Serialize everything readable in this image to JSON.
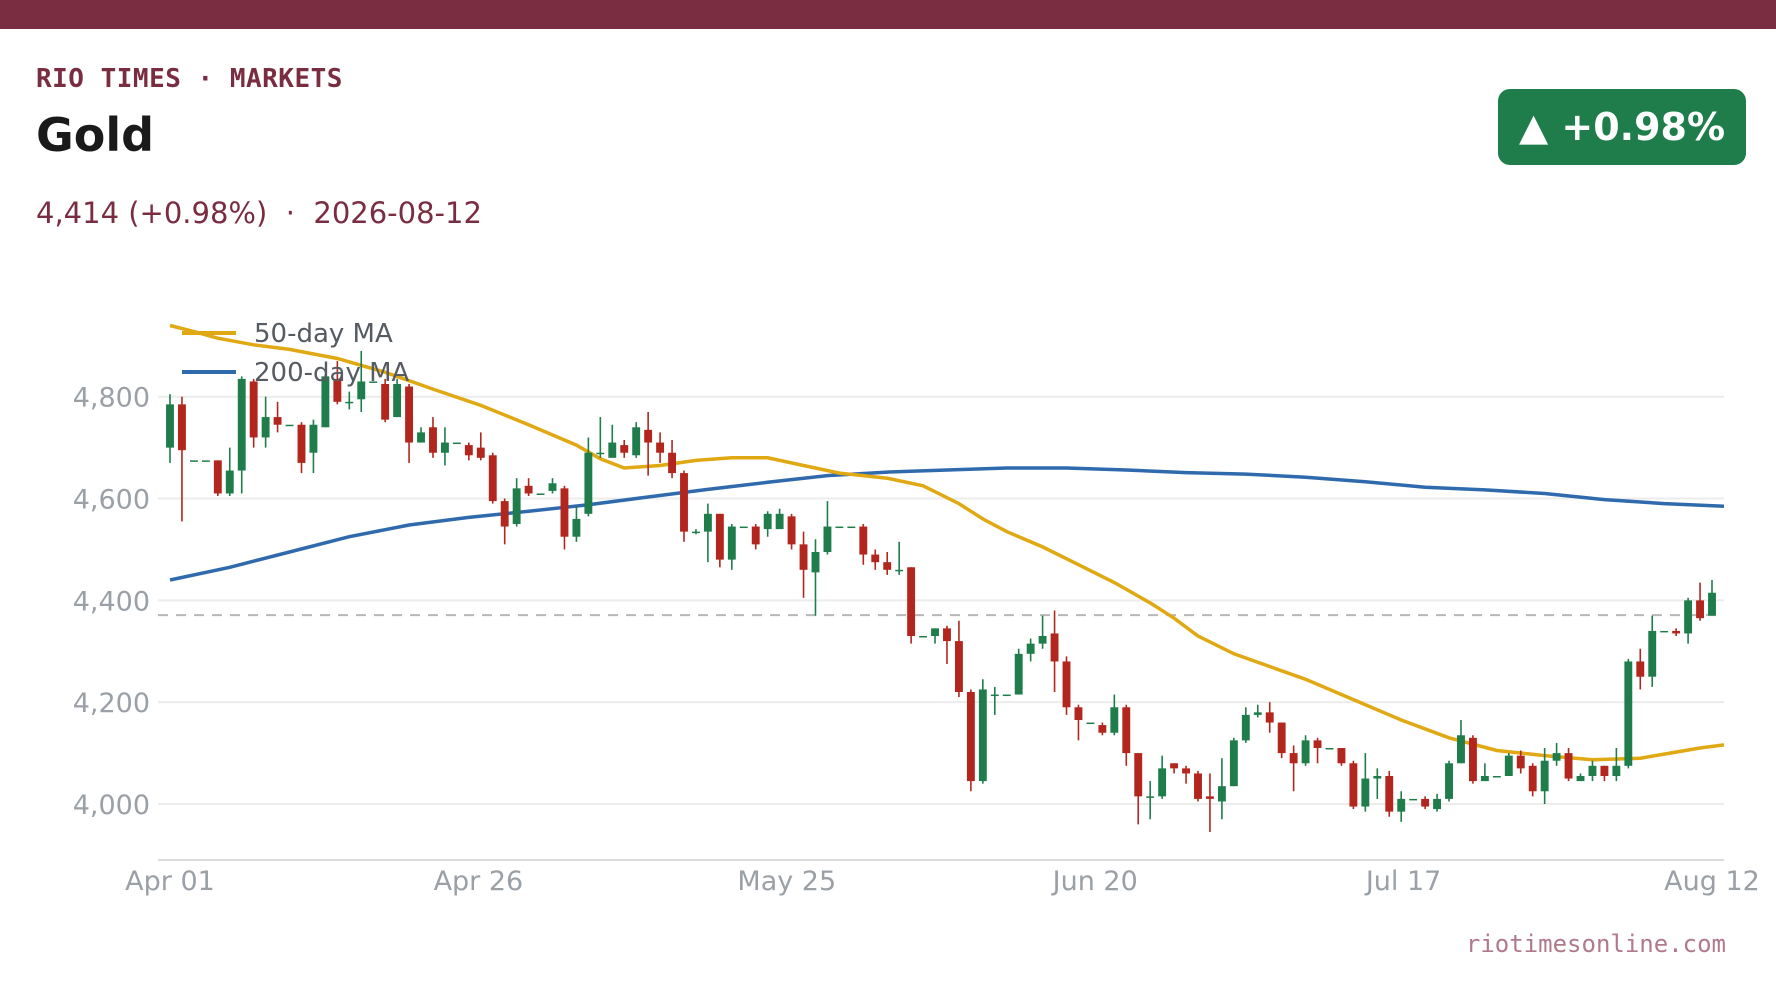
{
  "header": {
    "brand": "RIO TIMES · MARKETS",
    "title": "Gold",
    "subtitle": "4,414 (+0.98%)  ·  2026-08-12",
    "badge": "▲ +0.98%",
    "source": "riotimesonline.com"
  },
  "colors": {
    "brand": "#7a2c40",
    "up": "#1e7d4b",
    "down": "#b3261e",
    "ma50": "#e0a812",
    "ma200": "#2f6aad",
    "reference_line": "#b8b8b8"
  },
  "chart_data": {
    "type": "candlestick",
    "x_ticks": [
      "Apr 01",
      "Apr 26",
      "May 25",
      "Jun 20",
      "Jul 17",
      "Aug 12"
    ],
    "y_ticks": [
      4000,
      4200,
      4400,
      4600,
      4800
    ],
    "y_tick_labels": [
      "4,000",
      "4,200",
      "4,400",
      "4,600",
      "4,800"
    ],
    "ylim": [
      3890,
      4990
    ],
    "legend": [
      {
        "name": "50-day MA",
        "color": "#e0a812"
      },
      {
        "name": "200-day MA",
        "color": "#2f6aad"
      }
    ],
    "legend_position": "top-left",
    "reference_line": 4371,
    "candles": [
      [
        4700,
        4785,
        4805,
        4670
      ],
      [
        4785,
        4695,
        4800,
        4555
      ],
      [
        4675,
        4675,
        4675,
        4675
      ],
      [
        4675,
        4675,
        4675,
        4675
      ],
      [
        4675,
        4610,
        4675,
        4605
      ],
      [
        4610,
        4655,
        4700,
        4605
      ],
      [
        4655,
        4835,
        4840,
        4610
      ],
      [
        4830,
        4720,
        4835,
        4700
      ],
      [
        4720,
        4760,
        4800,
        4700
      ],
      [
        4760,
        4745,
        4790,
        4730
      ],
      [
        4745,
        4745,
        4745,
        4745
      ],
      [
        4745,
        4670,
        4750,
        4650
      ],
      [
        4690,
        4745,
        4755,
        4650
      ],
      [
        4740,
        4840,
        4845,
        4740
      ],
      [
        4835,
        4790,
        4870,
        4785
      ],
      [
        4790,
        4790,
        4810,
        4775
      ],
      [
        4795,
        4830,
        4890,
        4770
      ],
      [
        4830,
        4830,
        4830,
        4830
      ],
      [
        4825,
        4755,
        4835,
        4750
      ],
      [
        4760,
        4825,
        4835,
        4760
      ],
      [
        4820,
        4710,
        4825,
        4670
      ],
      [
        4710,
        4730,
        4740,
        4710
      ],
      [
        4740,
        4690,
        4760,
        4680
      ],
      [
        4690,
        4710,
        4740,
        4665
      ],
      [
        4710,
        4710,
        4710,
        4710
      ],
      [
        4705,
        4685,
        4710,
        4675
      ],
      [
        4700,
        4680,
        4730,
        4675
      ],
      [
        4685,
        4595,
        4690,
        4590
      ],
      [
        4595,
        4545,
        4600,
        4510
      ],
      [
        4550,
        4620,
        4640,
        4545
      ],
      [
        4625,
        4610,
        4640,
        4605
      ],
      [
        4610,
        4610,
        4610,
        4610
      ],
      [
        4615,
        4630,
        4640,
        4610
      ],
      [
        4620,
        4525,
        4625,
        4500
      ],
      [
        4525,
        4560,
        4585,
        4515
      ],
      [
        4570,
        4690,
        4720,
        4565
      ],
      [
        4690,
        4690,
        4760,
        4680
      ],
      [
        4680,
        4710,
        4745,
        4690
      ],
      [
        4705,
        4690,
        4715,
        4680
      ],
      [
        4685,
        4740,
        4750,
        4680
      ],
      [
        4735,
        4710,
        4770,
        4645
      ],
      [
        4710,
        4690,
        4730,
        4670
      ],
      [
        4690,
        4650,
        4715,
        4640
      ],
      [
        4650,
        4535,
        4655,
        4515
      ],
      [
        4535,
        4535,
        4540,
        4530
      ],
      [
        4535,
        4570,
        4590,
        4475
      ],
      [
        4570,
        4480,
        4570,
        4465
      ],
      [
        4480,
        4545,
        4550,
        4460
      ],
      [
        4545,
        4545,
        4545,
        4545
      ],
      [
        4545,
        4510,
        4550,
        4500
      ],
      [
        4540,
        4570,
        4575,
        4525
      ],
      [
        4540,
        4570,
        4580,
        4540
      ],
      [
        4565,
        4510,
        4570,
        4500
      ],
      [
        4510,
        4460,
        4535,
        4405
      ],
      [
        4455,
        4495,
        4520,
        4370
      ],
      [
        4495,
        4545,
        4595,
        4490
      ],
      [
        4545,
        4545,
        4545,
        4545
      ],
      [
        4545,
        4545,
        4545,
        4545
      ],
      [
        4545,
        4490,
        4550,
        4470
      ],
      [
        4490,
        4475,
        4500,
        4460
      ],
      [
        4475,
        4460,
        4495,
        4450
      ],
      [
        4460,
        4460,
        4515,
        4450
      ],
      [
        4465,
        4330,
        4465,
        4315
      ],
      [
        4330,
        4330,
        4330,
        4330
      ],
      [
        4330,
        4345,
        4345,
        4315
      ],
      [
        4345,
        4320,
        4350,
        4275
      ],
      [
        4320,
        4220,
        4360,
        4210
      ],
      [
        4220,
        4045,
        4225,
        4025
      ],
      [
        4045,
        4225,
        4245,
        4040
      ],
      [
        4215,
        4215,
        4230,
        4175
      ],
      [
        4215,
        4215,
        4215,
        4215
      ],
      [
        4215,
        4295,
        4305,
        4215
      ],
      [
        4295,
        4315,
        4325,
        4280
      ],
      [
        4315,
        4330,
        4370,
        4305
      ],
      [
        4335,
        4280,
        4380,
        4220
      ],
      [
        4280,
        4190,
        4290,
        4175
      ],
      [
        4190,
        4165,
        4195,
        4125
      ],
      [
        4160,
        4160,
        4160,
        4160
      ],
      [
        4155,
        4140,
        4160,
        4135
      ],
      [
        4140,
        4190,
        4215,
        4135
      ],
      [
        4190,
        4100,
        4195,
        4075
      ],
      [
        4100,
        4015,
        4100,
        3960
      ],
      [
        4015,
        4015,
        4045,
        3970
      ],
      [
        4015,
        4070,
        4095,
        4010
      ],
      [
        4080,
        4070,
        4080,
        4060
      ],
      [
        4070,
        4060,
        4075,
        4040
      ],
      [
        4060,
        4010,
        4065,
        4005
      ],
      [
        4015,
        4010,
        4060,
        3945
      ],
      [
        4005,
        4035,
        4090,
        3970
      ],
      [
        4035,
        4125,
        4130,
        4035
      ],
      [
        4125,
        4175,
        4190,
        4120
      ],
      [
        4175,
        4180,
        4195,
        4170
      ],
      [
        4180,
        4160,
        4200,
        4140
      ],
      [
        4160,
        4100,
        4160,
        4090
      ],
      [
        4100,
        4080,
        4115,
        4025
      ],
      [
        4080,
        4125,
        4135,
        4075
      ],
      [
        4125,
        4110,
        4130,
        4080
      ],
      [
        4110,
        4110,
        4110,
        4110
      ],
      [
        4110,
        4080,
        4110,
        4075
      ],
      [
        4080,
        3995,
        4085,
        3990
      ],
      [
        3995,
        4050,
        4100,
        3985
      ],
      [
        4050,
        4055,
        4070,
        4010
      ],
      [
        4055,
        3985,
        4065,
        3975
      ],
      [
        3985,
        4010,
        4025,
        3965
      ],
      [
        4010,
        4010,
        4010,
        4010
      ],
      [
        4010,
        3995,
        4015,
        3990
      ],
      [
        3990,
        4010,
        4020,
        3985
      ],
      [
        4010,
        4080,
        4085,
        4005
      ],
      [
        4080,
        4135,
        4165,
        4080
      ],
      [
        4130,
        4045,
        4135,
        4040
      ],
      [
        4045,
        4055,
        4080,
        4045
      ],
      [
        4055,
        4055,
        4055,
        4055
      ],
      [
        4055,
        4095,
        4100,
        4055
      ],
      [
        4095,
        4070,
        4105,
        4060
      ],
      [
        4075,
        4025,
        4080,
        4015
      ],
      [
        4025,
        4085,
        4110,
        4000
      ],
      [
        4085,
        4100,
        4120,
        4075
      ],
      [
        4100,
        4050,
        4110,
        4045
      ],
      [
        4045,
        4055,
        4060,
        4045
      ],
      [
        4055,
        4075,
        4085,
        4045
      ],
      [
        4075,
        4055,
        4075,
        4045
      ],
      [
        4055,
        4075,
        4110,
        4045
      ],
      [
        4075,
        4280,
        4285,
        4070
      ],
      [
        4280,
        4250,
        4305,
        4225
      ],
      [
        4250,
        4340,
        4370,
        4230
      ],
      [
        4340,
        4340,
        4340,
        4340
      ],
      [
        4340,
        4335,
        4345,
        4330
      ],
      [
        4335,
        4400,
        4405,
        4315
      ],
      [
        4400,
        4365,
        4435,
        4360
      ],
      [
        4370,
        4415,
        4440,
        4370
      ]
    ],
    "ma50": [
      [
        0,
        4940
      ],
      [
        2,
        4928
      ],
      [
        4,
        4915
      ],
      [
        7,
        4902
      ],
      [
        10,
        4893
      ],
      [
        14,
        4875
      ],
      [
        18,
        4848
      ],
      [
        22,
        4815
      ],
      [
        26,
        4783
      ],
      [
        30,
        4745
      ],
      [
        34,
        4705
      ],
      [
        36,
        4678
      ],
      [
        38,
        4660
      ],
      [
        41,
        4665
      ],
      [
        44,
        4675
      ],
      [
        47,
        4680
      ],
      [
        50,
        4680
      ],
      [
        53,
        4665
      ],
      [
        56,
        4650
      ],
      [
        58,
        4645
      ],
      [
        60,
        4640
      ],
      [
        63,
        4625
      ],
      [
        66,
        4590
      ],
      [
        68,
        4560
      ],
      [
        70,
        4535
      ],
      [
        73,
        4505
      ],
      [
        76,
        4470
      ],
      [
        79,
        4435
      ],
      [
        82,
        4395
      ],
      [
        84,
        4365
      ],
      [
        86,
        4330
      ],
      [
        89,
        4295
      ],
      [
        92,
        4270
      ],
      [
        95,
        4245
      ],
      [
        99,
        4205
      ],
      [
        103,
        4165
      ],
      [
        107,
        4130
      ],
      [
        111,
        4105
      ],
      [
        115,
        4095
      ],
      [
        119,
        4087
      ],
      [
        123,
        4090
      ],
      [
        125,
        4098
      ],
      [
        128,
        4110
      ],
      [
        130,
        4116
      ]
    ],
    "ma200": [
      [
        0,
        4440
      ],
      [
        5,
        4465
      ],
      [
        10,
        4495
      ],
      [
        15,
        4525
      ],
      [
        20,
        4548
      ],
      [
        25,
        4563
      ],
      [
        30,
        4575
      ],
      [
        35,
        4588
      ],
      [
        40,
        4603
      ],
      [
        45,
        4618
      ],
      [
        50,
        4632
      ],
      [
        55,
        4645
      ],
      [
        60,
        4652
      ],
      [
        65,
        4656
      ],
      [
        70,
        4660
      ],
      [
        75,
        4660
      ],
      [
        80,
        4656
      ],
      [
        85,
        4651
      ],
      [
        90,
        4648
      ],
      [
        95,
        4642
      ],
      [
        100,
        4633
      ],
      [
        105,
        4622
      ],
      [
        110,
        4617
      ],
      [
        115,
        4610
      ],
      [
        120,
        4598
      ],
      [
        125,
        4590
      ],
      [
        130,
        4585
      ]
    ]
  }
}
